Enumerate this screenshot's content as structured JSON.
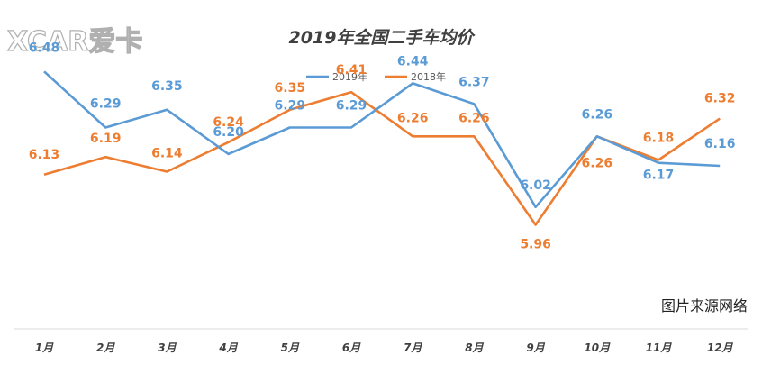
{
  "watermark": {
    "logo_text": "XCAR爱卡"
  },
  "credit": "图片来源网络",
  "colors": {
    "series2019": "#5b9bd5",
    "series2018": "#ed7d31",
    "axis": "#d9d9d9"
  },
  "chart_data": {
    "type": "line",
    "title": "2019年全国二手车均价",
    "categories": [
      "1月",
      "2月",
      "3月",
      "4月",
      "5月",
      "6月",
      "7月",
      "8月",
      "9月",
      "10月",
      "11月",
      "12月"
    ],
    "ylim": [
      5.5,
      6.6
    ],
    "grid": false,
    "legend_position": "top",
    "series": [
      {
        "name": "2019年",
        "color": "#5b9bd5",
        "values": [
          6.48,
          6.29,
          6.35,
          6.2,
          6.29,
          6.29,
          6.44,
          6.37,
          6.02,
          6.26,
          6.17,
          6.16
        ],
        "labels": [
          "6.48",
          "6.29",
          "6.35",
          "6.20",
          "6.29",
          "6.29",
          "6.44",
          "6.37",
          "6.02",
          "6.26",
          "6.17",
          "6.16"
        ]
      },
      {
        "name": "2018年",
        "color": "#ed7d31",
        "values": [
          6.13,
          6.19,
          6.14,
          6.24,
          6.35,
          6.41,
          6.26,
          6.26,
          5.96,
          6.26,
          6.18,
          6.32
        ],
        "labels": [
          "6.13",
          "6.19",
          "6.14",
          "6.24",
          "6.35",
          "6.41",
          "6.26",
          "6.26",
          "5.96",
          "6.26",
          "6.18",
          "6.32"
        ]
      }
    ]
  }
}
